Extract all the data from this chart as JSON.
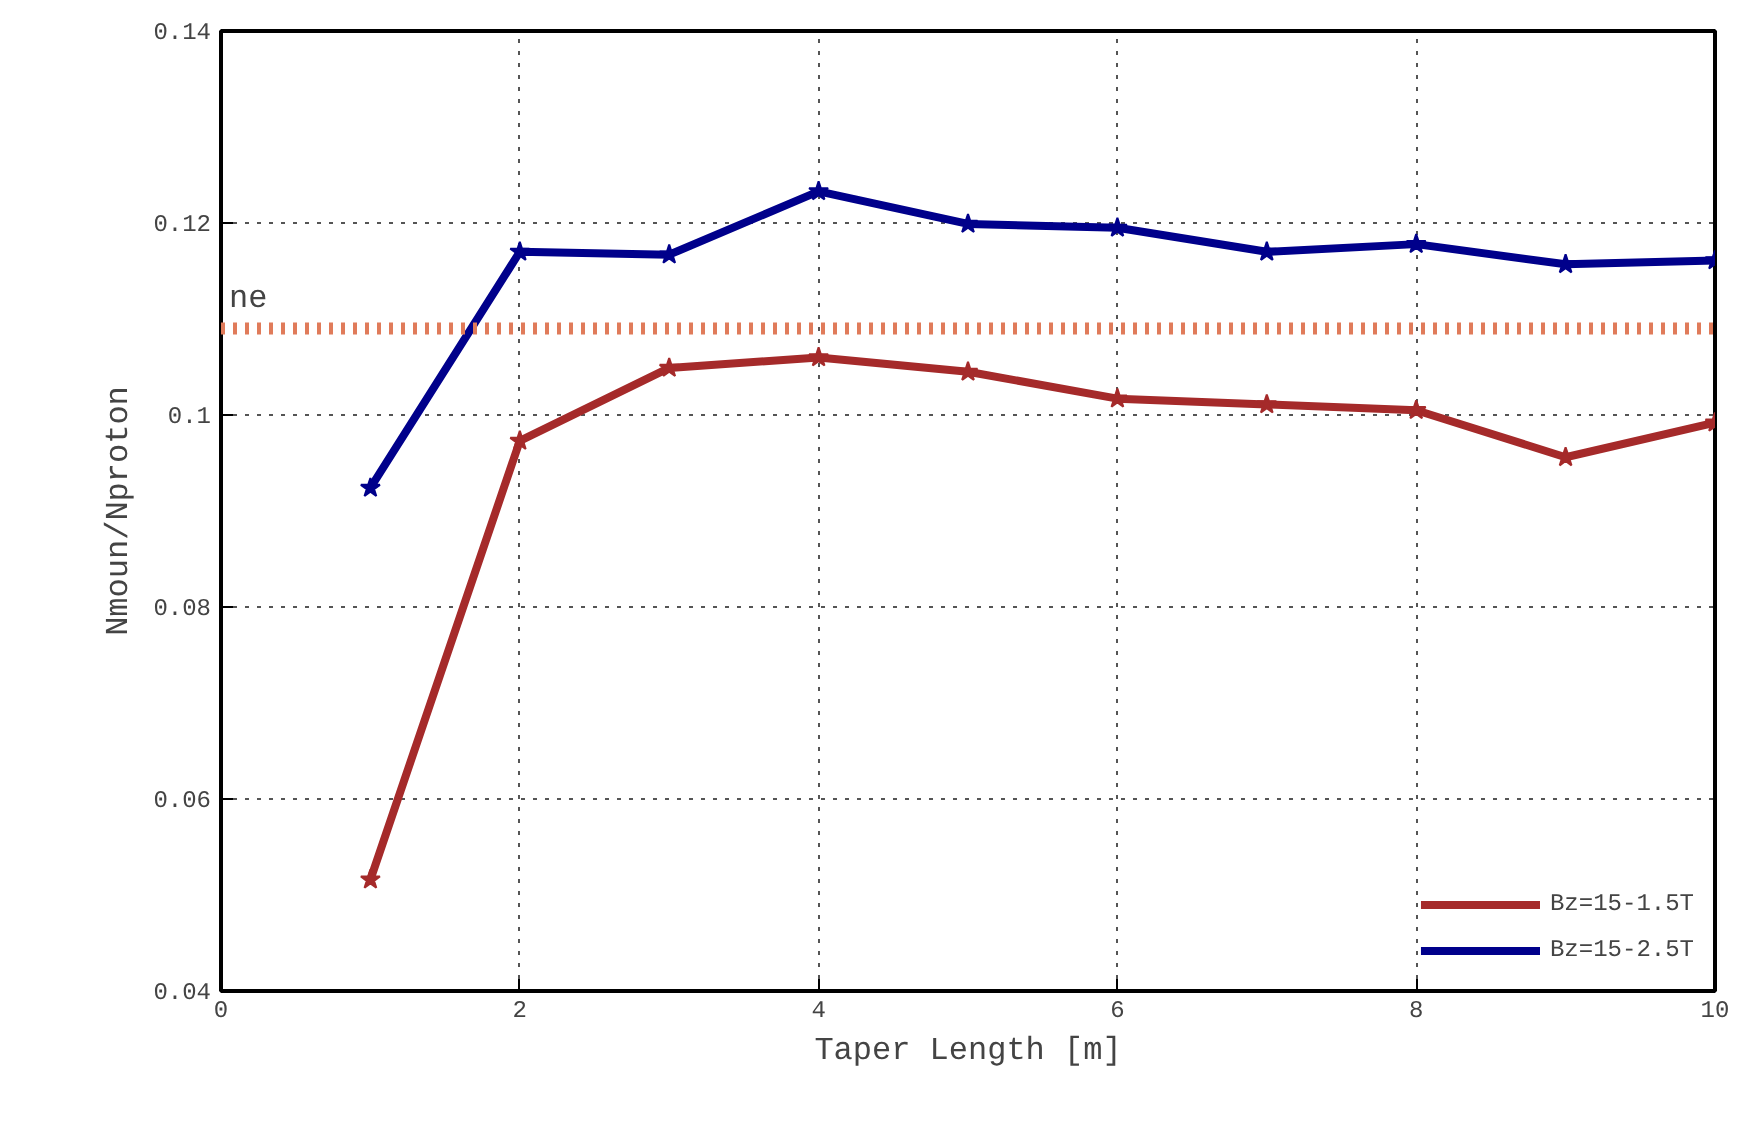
{
  "chart_data": {
    "type": "line",
    "xlabel": "Taper Length [m]",
    "ylabel": "Nmoun/Nproton",
    "x": [
      1,
      2,
      3,
      4,
      5,
      6,
      7,
      8,
      9,
      10
    ],
    "series": [
      {
        "name": "Bz=15-1.5T",
        "color": "#a52a2a",
        "values": [
          0.0516,
          0.0973,
          0.1049,
          0.106,
          0.1045,
          0.1017,
          0.1011,
          0.1005,
          0.0956,
          0.0992
        ]
      },
      {
        "name": "Bz=15-2.5T",
        "color": "#00008b",
        "values": [
          0.0924,
          0.117,
          0.1167,
          0.1233,
          0.1199,
          0.1195,
          0.117,
          0.1178,
          0.1157,
          0.1161
        ]
      }
    ],
    "xlim": [
      0,
      10
    ],
    "ylim": [
      0.04,
      0.14
    ],
    "xticks": [
      0,
      2,
      4,
      6,
      8,
      10
    ],
    "yticks": [
      0.04,
      0.06,
      0.08,
      0.1,
      0.12,
      0.14
    ],
    "ref_lines": [
      {
        "axis": "y",
        "value": 0.109,
        "label": "ne",
        "color": "#e07b5a",
        "line_style": "dotted"
      }
    ],
    "grid": true,
    "legend": "bottom right",
    "marker": "star",
    "line_style": "solid"
  }
}
